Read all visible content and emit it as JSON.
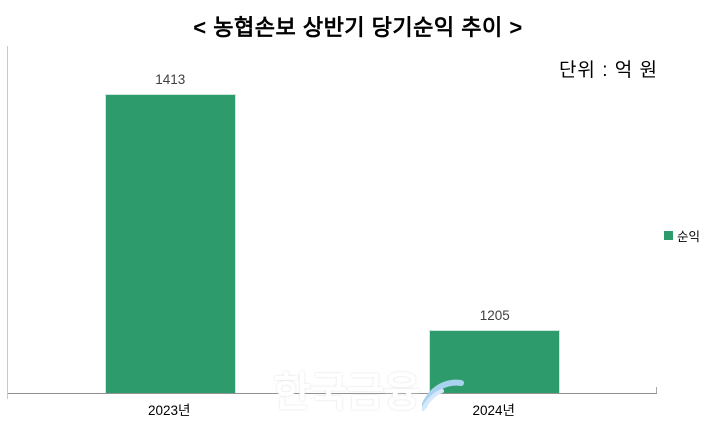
{
  "title": "< 농협손보 상반기 당기순익 추이 >",
  "unit_label": "단위 : 억 원",
  "legend": {
    "position": "right",
    "items": [
      {
        "label": "순익",
        "color": "#2d9b6c"
      }
    ]
  },
  "watermark": {
    "text": "한국금융"
  },
  "chart_data": {
    "type": "bar",
    "title": "< 농협손보 상반기 당기순익 추이 >",
    "categories": [
      "2023년",
      "2024년"
    ],
    "series": [
      {
        "name": "순익",
        "values": [
          1413,
          1205
        ],
        "color": "#2d9b6c"
      }
    ],
    "value_labels": [
      "1413",
      "1205"
    ],
    "xlabel": "",
    "ylabel": "",
    "unit": "억 원",
    "ylim": [
      1150,
      1455
    ],
    "ylim_note": "estimated from bar pixel heights; no y-axis tick labels visible",
    "grid": false,
    "legend_position": "right"
  },
  "colors": {
    "bar": "#2d9b6c",
    "bar_border": "#cde8db",
    "axis_bottom": "#919191",
    "axis_left": "#c9c9c9",
    "text": "#000000",
    "value_label": "#3f3f3f",
    "watermark_swoosh": "#a9d2ee",
    "watermark_swoosh_light": "#d3e8f8"
  }
}
